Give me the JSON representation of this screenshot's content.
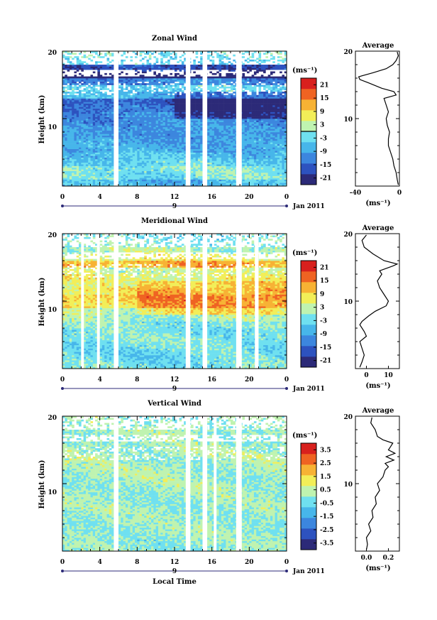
{
  "figure": {
    "xlabel": "Local Time",
    "date_label": "Jan 2011",
    "day_label": "9",
    "x_ticks": [
      "0",
      "4",
      "8",
      "12",
      "16",
      "20",
      "0"
    ],
    "y_ticks": [
      "",
      "10",
      "20"
    ],
    "ylabel": "Height (km)",
    "avg_title": "Average",
    "unit_label": "(ms⁻¹)",
    "avg_xlabel": "(ms⁻¹)"
  },
  "colorscale": [
    "#2c2a78",
    "#2d52bf",
    "#3c86de",
    "#47b6ea",
    "#6fe0f0",
    "#bff3b0",
    "#f2ee58",
    "#f7b234",
    "#ef6322",
    "#d8201d"
  ],
  "chart_data": [
    {
      "type": "heatmap",
      "title": "Zonal Wind",
      "xlabel": "Local Time",
      "ylabel": "Height (km)",
      "xlim": [
        0,
        24
      ],
      "ylim": [
        0,
        20
      ],
      "gaps": [
        [
          5.5,
          6.0
        ],
        [
          13.2,
          13.7
        ],
        [
          15.0,
          15.5
        ],
        [
          18.6,
          19.2
        ]
      ],
      "colorbar": {
        "ticks": [
          "21",
          "15",
          "9",
          "3",
          "-3",
          "-9",
          "-15",
          "-21"
        ],
        "zero_tick": 0,
        "tick_positions": [
          21,
          15,
          9,
          3,
          -3,
          -9,
          -15,
          -21
        ],
        "range": [
          -24,
          24
        ]
      },
      "profile_by_height_km": [
        {
          "h": 0.5,
          "v": -7
        },
        {
          "h": 1.5,
          "v": -2
        },
        {
          "h": 2.5,
          "v": -1
        },
        {
          "h": 3.5,
          "v": -4
        },
        {
          "h": 4.5,
          "v": -6
        },
        {
          "h": 5.5,
          "v": -8
        },
        {
          "h": 6.5,
          "v": -9
        },
        {
          "h": 7.5,
          "v": -10
        },
        {
          "h": 8.5,
          "v": -10
        },
        {
          "h": 9.5,
          "v": -11
        },
        {
          "h": 10.5,
          "v": -12
        },
        {
          "h": 11.5,
          "v": -14
        },
        {
          "h": 12.5,
          "v": -16
        },
        {
          "h": 13.5,
          "v": -7
        },
        {
          "h": 14.5,
          "v": -4
        },
        {
          "h": 15.5,
          "v": -12
        },
        {
          "h": 16.5,
          "v": -36
        },
        {
          "h": 17.5,
          "v": -18
        },
        {
          "h": 18.5,
          "v": -4
        },
        {
          "h": 19.5,
          "v": -2
        }
      ],
      "average": {
        "title": "Average",
        "xlim": [
          -40,
          0
        ],
        "x_ticks": [
          "-40",
          "0"
        ],
        "x_tick_values": [
          -40,
          0
        ],
        "y_ticks": [
          "",
          "10",
          "20"
        ],
        "points": [
          [
            -1,
            0.2
          ],
          [
            -2,
            1.0
          ],
          [
            -3,
            2.0
          ],
          [
            -5,
            3.0
          ],
          [
            -6,
            4.0
          ],
          [
            -8,
            5.0
          ],
          [
            -10,
            6.0
          ],
          [
            -10,
            7.0
          ],
          [
            -9,
            8.0
          ],
          [
            -11,
            9.0
          ],
          [
            -12,
            10.0
          ],
          [
            -10,
            11.0
          ],
          [
            -12,
            12.0
          ],
          [
            -14,
            13.0
          ],
          [
            -3,
            13.5
          ],
          [
            -5,
            14.0
          ],
          [
            -16,
            14.5
          ],
          [
            -28,
            15.3
          ],
          [
            -36,
            15.8
          ],
          [
            -37,
            16.2
          ],
          [
            -24,
            16.8
          ],
          [
            -12,
            17.4
          ],
          [
            -6,
            18.0
          ],
          [
            -3,
            18.6
          ],
          [
            -1,
            19.3
          ],
          [
            -2,
            19.9
          ]
        ]
      }
    },
    {
      "type": "heatmap",
      "title": "Meridional Wind",
      "xlabel": "Local Time",
      "ylabel": "Height (km)",
      "xlim": [
        0,
        24
      ],
      "ylim": [
        0,
        20
      ],
      "gaps": [
        [
          2.0,
          2.3
        ],
        [
          3.7,
          4.0
        ],
        [
          5.5,
          6.0
        ],
        [
          13.2,
          13.7
        ],
        [
          15.0,
          15.5
        ],
        [
          18.6,
          19.2
        ],
        [
          20.6,
          21.0
        ]
      ],
      "colorbar": {
        "ticks": [
          "21",
          "15",
          "9",
          "3",
          "-3",
          "-9",
          "-15",
          "-21"
        ],
        "tick_positions": [
          21,
          15,
          9,
          3,
          -3,
          -9,
          -15,
          -21
        ],
        "range": [
          -24,
          24
        ]
      },
      "profile_by_height_km": [
        {
          "h": 0.5,
          "v": -2
        },
        {
          "h": 1.5,
          "v": -3
        },
        {
          "h": 2.5,
          "v": -3
        },
        {
          "h": 3.5,
          "v": -2
        },
        {
          "h": 4.5,
          "v": -1
        },
        {
          "h": 5.5,
          "v": -2
        },
        {
          "h": 6.5,
          "v": -1
        },
        {
          "h": 7.5,
          "v": 1
        },
        {
          "h": 8.5,
          "v": 3
        },
        {
          "h": 9.5,
          "v": 9
        },
        {
          "h": 10.5,
          "v": 10
        },
        {
          "h": 11.5,
          "v": 7
        },
        {
          "h": 12.5,
          "v": 5
        },
        {
          "h": 13.5,
          "v": 6
        },
        {
          "h": 14.5,
          "v": 4
        },
        {
          "h": 15.5,
          "v": 12
        },
        {
          "h": 16.5,
          "v": 6
        },
        {
          "h": 17.5,
          "v": 2
        },
        {
          "h": 18.5,
          "v": -1
        },
        {
          "h": 19.5,
          "v": -2
        }
      ],
      "average": {
        "title": "Average",
        "xlim": [
          -5,
          15
        ],
        "x_ticks": [
          "0",
          "10"
        ],
        "x_tick_values": [
          0,
          10
        ],
        "y_ticks": [
          "",
          "10",
          "20"
        ],
        "points": [
          [
            -3,
            0.2
          ],
          [
            -2,
            1.0
          ],
          [
            -1,
            2.0
          ],
          [
            -2,
            3.0
          ],
          [
            -3,
            4.0
          ],
          [
            0,
            4.8
          ],
          [
            -1,
            5.5
          ],
          [
            -3,
            6.5
          ],
          [
            -2,
            7.0
          ],
          [
            1,
            7.8
          ],
          [
            4,
            8.5
          ],
          [
            9,
            9.3
          ],
          [
            10,
            10.0
          ],
          [
            8,
            11.0
          ],
          [
            6,
            12.0
          ],
          [
            5,
            13.0
          ],
          [
            7,
            14.0
          ],
          [
            6,
            14.5
          ],
          [
            12,
            15.2
          ],
          [
            14,
            15.5
          ],
          [
            8,
            16.0
          ],
          [
            3,
            17.0
          ],
          [
            -1,
            18.0
          ],
          [
            -2,
            19.0
          ],
          [
            0,
            19.8
          ]
        ]
      }
    },
    {
      "type": "heatmap",
      "title": "Vertical Wind",
      "xlabel": "Local Time",
      "ylabel": "Height (km)",
      "xlim": [
        0,
        24
      ],
      "ylim": [
        0,
        20
      ],
      "gaps": [
        [
          5.5,
          6.0
        ],
        [
          13.2,
          13.7
        ],
        [
          15.0,
          15.5
        ],
        [
          16.2,
          16.5
        ],
        [
          18.6,
          19.2
        ]
      ],
      "colorbar": {
        "ticks": [
          "3.5",
          "2.5",
          "1.5",
          "0.5",
          "-0.5",
          "-1.5",
          "-2.5",
          "-3.5"
        ],
        "tick_positions": [
          3.5,
          2.5,
          1.5,
          0.5,
          -0.5,
          -1.5,
          -2.5,
          -3.5
        ],
        "range": [
          -4,
          4
        ]
      },
      "profile_by_height_km": [
        {
          "h": 0.5,
          "v": 0.0
        },
        {
          "h": 1.5,
          "v": 0.0
        },
        {
          "h": 2.5,
          "v": 0.05
        },
        {
          "h": 3.5,
          "v": 0.05
        },
        {
          "h": 4.5,
          "v": 0.05
        },
        {
          "h": 5.5,
          "v": 0.05
        },
        {
          "h": 6.5,
          "v": 0.1
        },
        {
          "h": 7.5,
          "v": 0.1
        },
        {
          "h": 8.5,
          "v": 0.12
        },
        {
          "h": 9.5,
          "v": 0.15
        },
        {
          "h": 10.5,
          "v": 0.15
        },
        {
          "h": 11.5,
          "v": 0.2
        },
        {
          "h": 12.5,
          "v": 0.2
        },
        {
          "h": 13.5,
          "v": 0.2
        },
        {
          "h": 14.5,
          "v": 0.25
        },
        {
          "h": 15.5,
          "v": 0.2
        },
        {
          "h": 16.5,
          "v": 0.15
        },
        {
          "h": 17.5,
          "v": 0.15
        },
        {
          "h": 18.5,
          "v": 0.05
        },
        {
          "h": 19.5,
          "v": 0.05
        }
      ],
      "average": {
        "title": "Average",
        "xlim": [
          -0.1,
          0.3
        ],
        "x_ticks": [
          "0.0",
          "0.2"
        ],
        "x_tick_values": [
          0.0,
          0.2
        ],
        "y_ticks": [
          "",
          "10",
          "20"
        ],
        "points": [
          [
            0.0,
            0.2
          ],
          [
            0.01,
            1.0
          ],
          [
            0.0,
            2.0
          ],
          [
            0.04,
            3.0
          ],
          [
            0.02,
            4.0
          ],
          [
            0.06,
            5.0
          ],
          [
            0.05,
            6.0
          ],
          [
            0.09,
            7.0
          ],
          [
            0.08,
            8.0
          ],
          [
            0.12,
            9.0
          ],
          [
            0.1,
            10.0
          ],
          [
            0.15,
            11.0
          ],
          [
            0.17,
            12.0
          ],
          [
            0.2,
            12.5
          ],
          [
            0.17,
            13.0
          ],
          [
            0.25,
            13.5
          ],
          [
            0.18,
            14.0
          ],
          [
            0.26,
            14.5
          ],
          [
            0.2,
            15.0
          ],
          [
            0.22,
            15.5
          ],
          [
            0.24,
            16.0
          ],
          [
            0.15,
            16.5
          ],
          [
            0.1,
            17.0
          ],
          [
            0.08,
            18.0
          ],
          [
            0.04,
            19.0
          ],
          [
            0.05,
            19.8
          ]
        ]
      }
    }
  ]
}
